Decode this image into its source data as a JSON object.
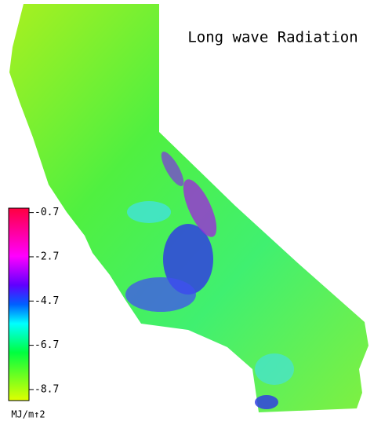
{
  "title": "Long wave Radiation",
  "colorbar": {
    "lim": [
      -9.2,
      -0.5
    ],
    "ticks": [
      -0.7,
      -2.7,
      -4.7,
      -6.7,
      -8.7
    ],
    "unit": "MJ/m↑2"
  }
}
